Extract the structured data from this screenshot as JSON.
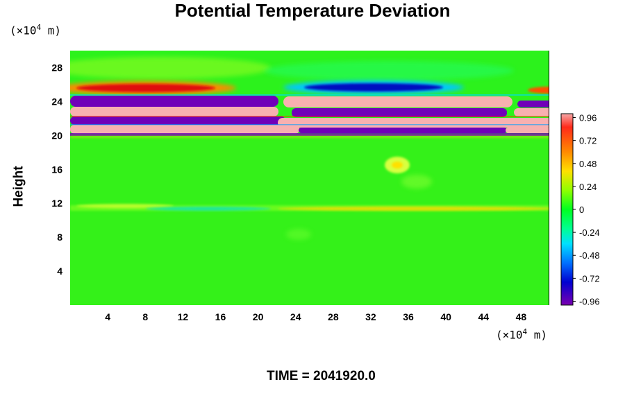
{
  "chart_data": {
    "type": "heatmap",
    "title": "Potential Temperature Deviation",
    "ylabel": "Height",
    "y_unit": "10^4 m",
    "x_unit": "10^4 m",
    "xlim": [
      0,
      51
    ],
    "ylim": [
      0,
      30
    ],
    "x_ticks": [
      "4",
      "8",
      "12",
      "16",
      "20",
      "24",
      "28",
      "32",
      "36",
      "40",
      "44",
      "48"
    ],
    "y_ticks": [
      "4",
      "8",
      "12",
      "16",
      "20",
      "24",
      "28"
    ],
    "colorbar": {
      "range": [
        -1.0,
        1.0
      ],
      "tick_labels": [
        "0.96",
        "0.72",
        "0.48",
        "0.24",
        "0",
        "-0.24",
        "-0.48",
        "-0.72",
        "-0.96"
      ]
    },
    "features": [
      {
        "x_range": [
          0,
          51
        ],
        "y_range": [
          20,
          24
        ],
        "value": "alternating ±0.96 layers"
      },
      {
        "x_range": [
          0,
          17
        ],
        "y_range": [
          24.5,
          25.5
        ],
        "value": 0.9
      },
      {
        "x_range": [
          25,
          40
        ],
        "y_range": [
          24.5,
          25.5
        ],
        "value": -0.9
      },
      {
        "x_range": [
          0,
          51
        ],
        "y_range": [
          11,
          12
        ],
        "value": 0.2
      },
      {
        "x": 34,
        "y": 16.5,
        "value": 0.3
      }
    ]
  },
  "footer": {
    "time_label": "TIME = 2041920.0"
  }
}
